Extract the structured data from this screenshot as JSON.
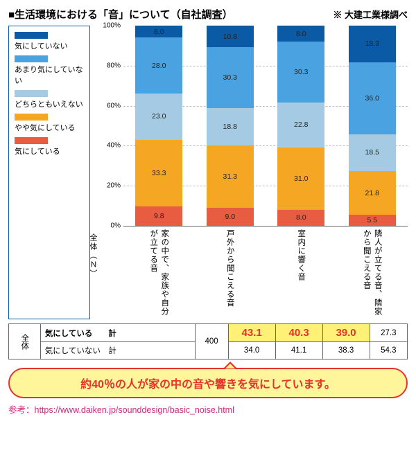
{
  "title": "■生活環境における「音」について（自社調査）",
  "credit": "※ 大建工業様調べ",
  "colors": {
    "c5": "#0a5aa6",
    "c4": "#4aa3e0",
    "c3": "#a4cbe3",
    "c2": "#f5a623",
    "c1": "#e85c41",
    "border": "#0a5aa6",
    "hl_bg": "#fff176",
    "hl_fg": "#e6322b",
    "callout_border": "#e6322b",
    "callout_bg": "#fff59a",
    "ref_color": "#d02a7a"
  },
  "legend": [
    {
      "label": "気にしていない",
      "colorKey": "c5"
    },
    {
      "label": "あまり気にしていない",
      "colorKey": "c4"
    },
    {
      "label": "どちらともいえない",
      "colorKey": "c3"
    },
    {
      "label": "やや気にしている",
      "colorKey": "c2"
    },
    {
      "label": "気にしている",
      "colorKey": "c1"
    }
  ],
  "chart": {
    "type": "stacked-bar-100",
    "ylim": [
      0,
      100
    ],
    "ytick_step": 20,
    "categories": [
      "家の中で、家族や自分が立てる音",
      "戸外から聞こえる音",
      "室内に響く音",
      "隣人が立てる音、隣家から聞こえる音"
    ],
    "series_order": [
      "c5",
      "c4",
      "c3",
      "c2",
      "c1"
    ],
    "data": [
      {
        "c5": 6.0,
        "c4": 28.0,
        "c3": 23.0,
        "c2": 33.3,
        "c1": 9.8
      },
      {
        "c5": 10.8,
        "c4": 30.3,
        "c3": 18.8,
        "c2": 31.3,
        "c1": 9.0
      },
      {
        "c5": 8.0,
        "c4": 30.3,
        "c3": 22.8,
        "c2": 31.0,
        "c1": 8.0
      },
      {
        "c5": 18.3,
        "c4": 36.0,
        "c3": 18.5,
        "c2": 21.8,
        "c1": 5.5
      }
    ],
    "overall_label": "全体（Ｎ）"
  },
  "table": {
    "side_label": "全体",
    "n_value": "400",
    "rows": [
      {
        "label": "気にしている　　計",
        "values": [
          "43.1",
          "40.3",
          "39.0",
          "27.3"
        ],
        "hl": [
          true,
          true,
          true,
          false
        ],
        "bold": true
      },
      {
        "label": "気にしていない　計",
        "values": [
          "34.0",
          "41.1",
          "38.3",
          "54.3"
        ],
        "hl": [
          false,
          false,
          false,
          false
        ],
        "bold": false
      }
    ]
  },
  "callout": "約40％の人が家の中の音や響きを気にしています。",
  "reference": "参考：https://www.daiken.jp/sounddesign/basic_noise.html"
}
